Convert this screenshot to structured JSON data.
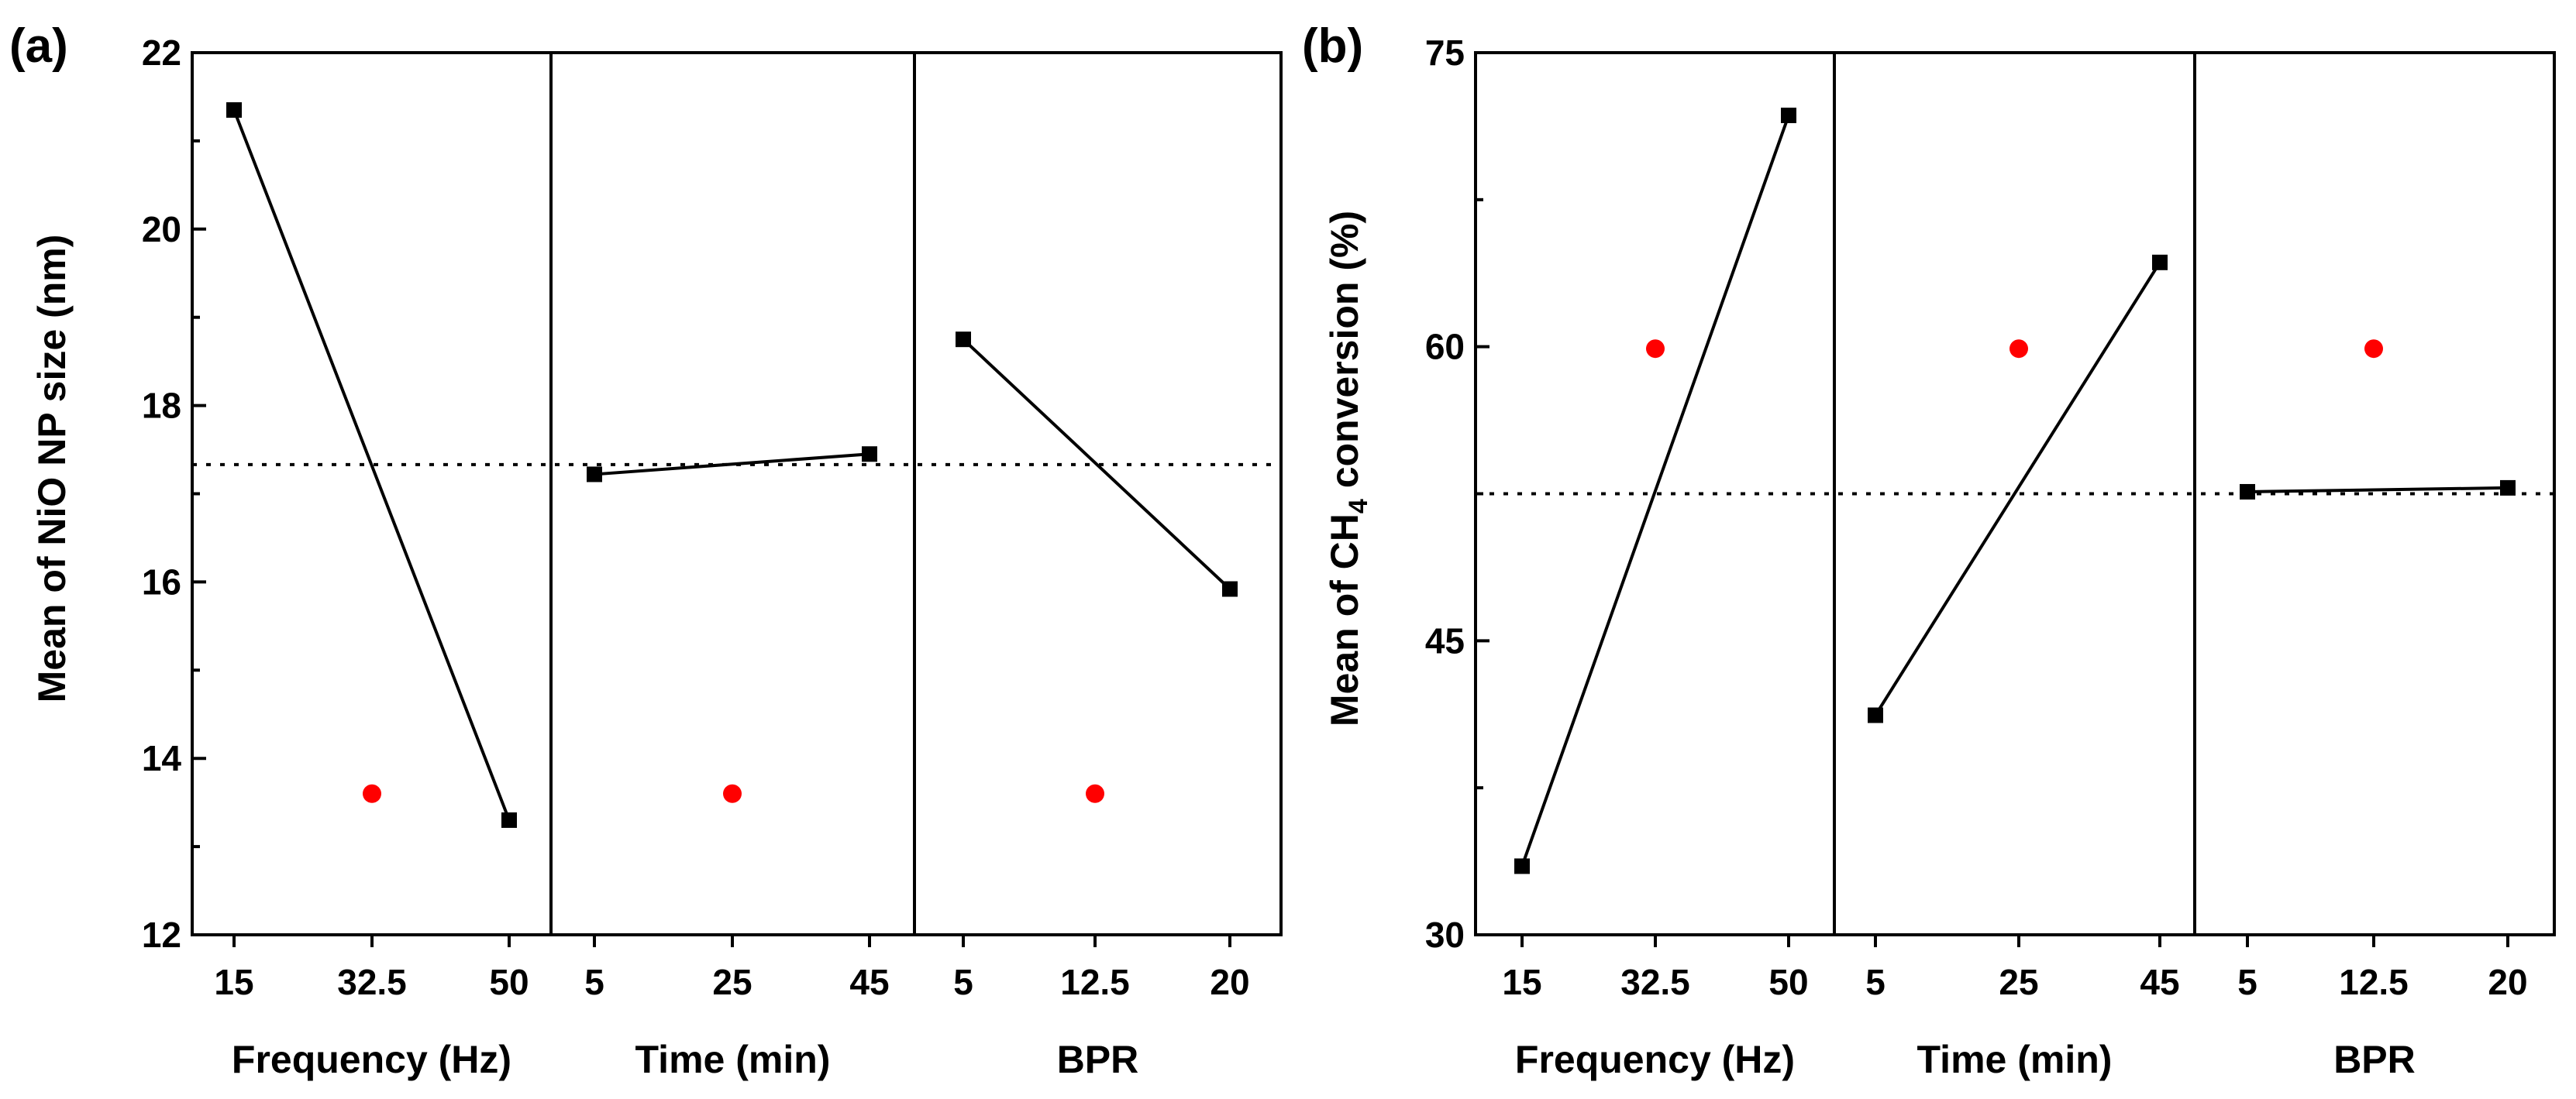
{
  "chart_data": [
    {
      "type": "line",
      "panel_label": "(a)",
      "ylabel": "Mean of NiO NP size (nm)",
      "ylim": [
        12,
        22
      ],
      "yticks": [
        12,
        14,
        16,
        18,
        20,
        22
      ],
      "mean_line": 17.33,
      "factors": [
        {
          "name": "Frequency (Hz)",
          "ticks": [
            "15",
            "32.5",
            "50"
          ],
          "points": [
            {
              "x": "15",
              "y": 21.35
            },
            {
              "x": "50",
              "y": 13.3
            }
          ],
          "red_point": {
            "x": "32.5",
            "y": 13.6
          }
        },
        {
          "name": "Time (min)",
          "ticks": [
            "5",
            "25",
            "45"
          ],
          "points": [
            {
              "x": "5",
              "y": 17.22
            },
            {
              "x": "45",
              "y": 17.45
            }
          ],
          "red_point": {
            "x": "25",
            "y": 13.6
          }
        },
        {
          "name": "BPR",
          "ticks": [
            "5",
            "12.5",
            "20"
          ],
          "points": [
            {
              "x": "5",
              "y": 18.75
            },
            {
              "x": "20",
              "y": 15.92
            }
          ],
          "red_point": {
            "x": "12.5",
            "y": 13.6
          }
        }
      ]
    },
    {
      "type": "line",
      "panel_label": "(b)",
      "ylabel_prefix": "Mean of CH",
      "ylabel_subscript": "4",
      "ylabel_suffix": " conversion (%)",
      "ylim": [
        30,
        75
      ],
      "yticks": [
        30,
        45,
        60,
        75
      ],
      "mean_line": 52.5,
      "factors": [
        {
          "name": "Frequency (Hz)",
          "ticks": [
            "15",
            "32.5",
            "50"
          ],
          "points": [
            {
              "x": "15",
              "y": 33.5
            },
            {
              "x": "50",
              "y": 71.8
            }
          ],
          "red_point": {
            "x": "32.5",
            "y": 59.9
          }
        },
        {
          "name": "Time (min)",
          "ticks": [
            "5",
            "25",
            "45"
          ],
          "points": [
            {
              "x": "5",
              "y": 41.2
            },
            {
              "x": "45",
              "y": 64.3
            }
          ],
          "red_point": {
            "x": "25",
            "y": 59.9
          }
        },
        {
          "name": "BPR",
          "ticks": [
            "5",
            "12.5",
            "20"
          ],
          "points": [
            {
              "x": "5",
              "y": 52.6
            },
            {
              "x": "20",
              "y": 52.8
            }
          ],
          "red_point": {
            "x": "12.5",
            "y": 59.9
          }
        }
      ]
    }
  ],
  "colors": {
    "line": "#000000",
    "marker": "#000000",
    "red_point": "#ff0000",
    "background": "#ffffff"
  }
}
